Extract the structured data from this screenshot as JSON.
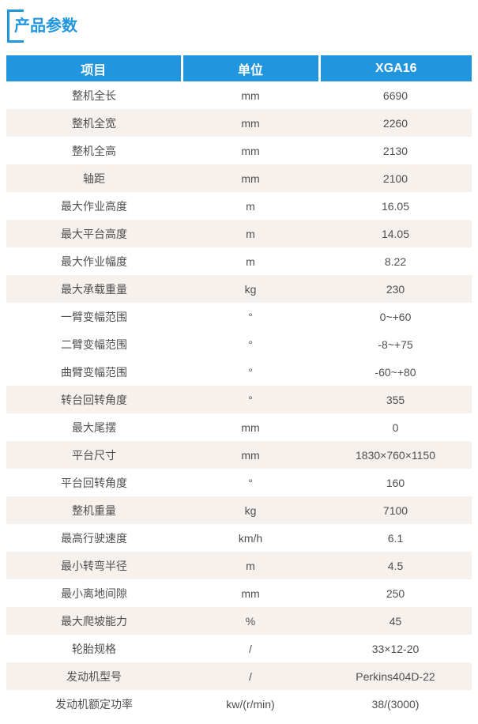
{
  "section": {
    "title": "产品参数"
  },
  "table": {
    "columns": [
      "项目",
      "单位",
      "XGA16"
    ],
    "rows": [
      {
        "item": "整机全长",
        "unit": "mm",
        "value": "6690",
        "shaded": false
      },
      {
        "item": "整机全宽",
        "unit": "mm",
        "value": "2260",
        "shaded": true
      },
      {
        "item": "整机全高",
        "unit": "mm",
        "value": "2130",
        "shaded": false
      },
      {
        "item": "轴距",
        "unit": "mm",
        "value": "2100",
        "shaded": true
      },
      {
        "item": "最大作业高度",
        "unit": "m",
        "value": "16.05",
        "shaded": false
      },
      {
        "item": "最大平台高度",
        "unit": "m",
        "value": "14.05",
        "shaded": true
      },
      {
        "item": "最大作业幅度",
        "unit": "m",
        "value": "8.22",
        "shaded": false
      },
      {
        "item": "最大承载重量",
        "unit": "kg",
        "value": "230",
        "shaded": true
      },
      {
        "item": "一臂变幅范围",
        "unit": "°",
        "value": "0~+60",
        "shaded": false
      },
      {
        "item": "二臂变幅范围",
        "unit": "°",
        "value": "-8~+75",
        "shaded": false
      },
      {
        "item": "曲臂变幅范围",
        "unit": "°",
        "value": "-60~+80",
        "shaded": false
      },
      {
        "item": "转台回转角度",
        "unit": "°",
        "value": "355",
        "shaded": true
      },
      {
        "item": "最大尾摆",
        "unit": "mm",
        "value": "0",
        "shaded": false
      },
      {
        "item": "平台尺寸",
        "unit": "mm",
        "value": "1830×760×1150",
        "shaded": true
      },
      {
        "item": "平台回转角度",
        "unit": "°",
        "value": "160",
        "shaded": false
      },
      {
        "item": "整机重量",
        "unit": "kg",
        "value": "7100",
        "shaded": true
      },
      {
        "item": "最高行驶速度",
        "unit": "km/h",
        "value": "6.1",
        "shaded": false
      },
      {
        "item": "最小转弯半径",
        "unit": "m",
        "value": "4.5",
        "shaded": true
      },
      {
        "item": "最小离地间隙",
        "unit": "mm",
        "value": "250",
        "shaded": false
      },
      {
        "item": "最大爬坡能力",
        "unit": "%",
        "value": "45",
        "shaded": true
      },
      {
        "item": "轮胎规格",
        "unit": "/",
        "value": "33×12-20",
        "shaded": false
      },
      {
        "item": "发动机型号",
        "unit": "/",
        "value": "Perkins404D-22",
        "shaded": true
      },
      {
        "item": "发动机额定功率",
        "unit": "kw/(r/min)",
        "value": "38/(3000)",
        "shaded": false
      }
    ]
  },
  "colors": {
    "accent": "#2196DF",
    "stripe": "#F6F1ED",
    "cell_text": "#4F4F4F",
    "header_text": "#FFFFFF"
  }
}
